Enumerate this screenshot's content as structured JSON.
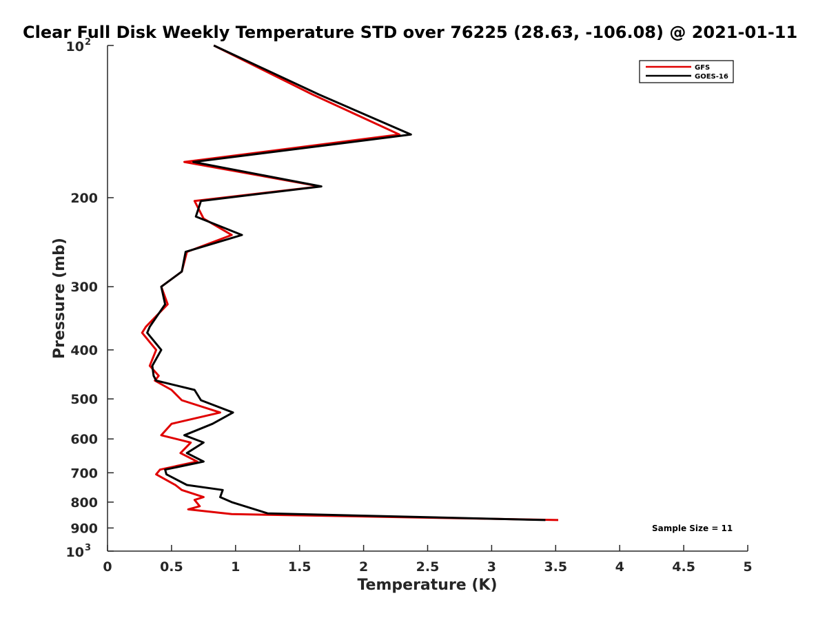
{
  "chart_data": {
    "type": "line",
    "title": "Clear Full Disk Weekly Temperature STD over 76225 (28.63, -106.08) @ 2021-01-11",
    "xlabel": "Temperature (K)",
    "ylabel": "Pressure (mb)",
    "xlim": [
      0,
      5
    ],
    "ylim": [
      100,
      1000
    ],
    "y_scale": "log",
    "y_reversed": true,
    "grid": false,
    "legend_position": "top-right",
    "x_ticks": [
      "0",
      "0.5",
      "1",
      "1.5",
      "2",
      "2.5",
      "3",
      "3.5",
      "4",
      "4.5",
      "5"
    ],
    "y_ticks": [
      {
        "value": 100,
        "base": "10",
        "exp": "2"
      },
      {
        "value": 200,
        "label": "200"
      },
      {
        "value": 300,
        "label": "300"
      },
      {
        "value": 400,
        "label": "400"
      },
      {
        "value": 500,
        "label": "500"
      },
      {
        "value": 600,
        "label": "600"
      },
      {
        "value": 700,
        "label": "700"
      },
      {
        "value": 800,
        "label": "800"
      },
      {
        "value": 900,
        "label": "900"
      },
      {
        "value": 1000,
        "base": "10",
        "exp": "3"
      }
    ],
    "annotation": "Sample Size = 11",
    "series": [
      {
        "name": "GFS",
        "color": "#e00000",
        "points": [
          [
            0.83,
            100
          ],
          [
            1.6,
            125
          ],
          [
            2.28,
            150
          ],
          [
            0.6,
            170
          ],
          [
            1.66,
            190
          ],
          [
            0.68,
            203
          ],
          [
            0.75,
            220
          ],
          [
            0.97,
            237
          ],
          [
            0.62,
            256
          ],
          [
            0.58,
            280
          ],
          [
            0.42,
            300
          ],
          [
            0.47,
            325
          ],
          [
            0.3,
            360
          ],
          [
            0.27,
            370
          ],
          [
            0.38,
            400
          ],
          [
            0.33,
            430
          ],
          [
            0.4,
            450
          ],
          [
            0.37,
            460
          ],
          [
            0.5,
            480
          ],
          [
            0.58,
            503
          ],
          [
            0.88,
            532
          ],
          [
            0.5,
            560
          ],
          [
            0.42,
            590
          ],
          [
            0.65,
            610
          ],
          [
            0.57,
            640
          ],
          [
            0.7,
            665
          ],
          [
            0.41,
            690
          ],
          [
            0.38,
            705
          ],
          [
            0.53,
            740
          ],
          [
            0.58,
            757
          ],
          [
            0.75,
            782
          ],
          [
            0.68,
            792
          ],
          [
            0.72,
            815
          ],
          [
            0.63,
            827
          ],
          [
            0.97,
            845
          ],
          [
            3.52,
            868
          ]
        ]
      },
      {
        "name": "GOES-16",
        "color": "#000000",
        "points": [
          [
            0.83,
            100
          ],
          [
            1.65,
            125
          ],
          [
            2.37,
            150
          ],
          [
            0.67,
            170
          ],
          [
            1.67,
            190
          ],
          [
            0.73,
            203
          ],
          [
            0.69,
            218
          ],
          [
            1.05,
            237
          ],
          [
            0.61,
            256
          ],
          [
            0.58,
            280
          ],
          [
            0.42,
            300
          ],
          [
            0.45,
            325
          ],
          [
            0.33,
            360
          ],
          [
            0.31,
            370
          ],
          [
            0.42,
            400
          ],
          [
            0.35,
            430
          ],
          [
            0.36,
            450
          ],
          [
            0.38,
            460
          ],
          [
            0.68,
            480
          ],
          [
            0.73,
            503
          ],
          [
            0.98,
            532
          ],
          [
            0.82,
            560
          ],
          [
            0.6,
            590
          ],
          [
            0.75,
            610
          ],
          [
            0.62,
            640
          ],
          [
            0.75,
            665
          ],
          [
            0.45,
            690
          ],
          [
            0.46,
            705
          ],
          [
            0.62,
            740
          ],
          [
            0.9,
            757
          ],
          [
            0.88,
            782
          ],
          [
            0.97,
            800
          ],
          [
            1.25,
            842
          ],
          [
            3.42,
            868
          ]
        ]
      }
    ]
  }
}
